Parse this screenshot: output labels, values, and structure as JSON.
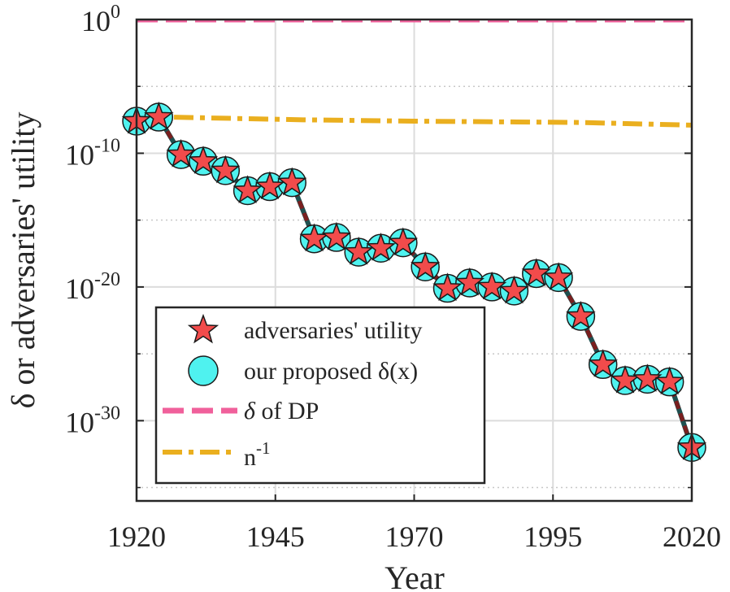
{
  "chart_data": {
    "type": "line",
    "title": "",
    "xlabel": "Year",
    "ylabel": "δ or adversaries' utility",
    "yscale": "log10",
    "xlim": [
      1920,
      2020
    ],
    "ylim_exponent": [
      -36,
      0
    ],
    "x_ticks": [
      1920,
      1945,
      1970,
      1995,
      2020
    ],
    "y_ticks": [
      {
        "base": "10",
        "exp": "0",
        "value_exponent": 0
      },
      {
        "base": "10",
        "exp": "-10",
        "value_exponent": -10
      },
      {
        "base": "10",
        "exp": "-20",
        "value_exponent": -20
      },
      {
        "base": "10",
        "exp": "-30",
        "value_exponent": -30
      }
    ],
    "grid": true,
    "legend_position": "bottom-left",
    "series": [
      {
        "name": "adversaries' utility",
        "marker": "star",
        "color": "#f24b4b",
        "x": [
          1920,
          1924,
          1928,
          1932,
          1936,
          1940,
          1944,
          1948,
          1952,
          1956,
          1960,
          1964,
          1968,
          1972,
          1976,
          1980,
          1984,
          1988,
          1992,
          1996,
          2000,
          2004,
          2008,
          2012,
          2016,
          2020
        ],
        "log10_y": [
          -7.6,
          -7.3,
          -10.1,
          -10.6,
          -11.3,
          -12.8,
          -12.5,
          -12.2,
          -16.4,
          -16.3,
          -17.4,
          -17.1,
          -16.7,
          -18.5,
          -20.1,
          -19.7,
          -20.0,
          -20.3,
          -19.0,
          -19.3,
          -22.2,
          -25.8,
          -27.0,
          -26.9,
          -27.1,
          -32.0
        ]
      },
      {
        "name": "our proposed δ(x)",
        "marker": "circle",
        "color": "#4ff2ef",
        "line_color": "#7a1f1f",
        "x": [
          1920,
          1924,
          1928,
          1932,
          1936,
          1940,
          1944,
          1948,
          1952,
          1956,
          1960,
          1964,
          1968,
          1972,
          1976,
          1980,
          1984,
          1988,
          1992,
          1996,
          2000,
          2004,
          2008,
          2012,
          2016,
          2020
        ],
        "log10_y": [
          -7.6,
          -7.3,
          -10.1,
          -10.6,
          -11.3,
          -12.8,
          -12.5,
          -12.2,
          -16.4,
          -16.3,
          -17.4,
          -17.1,
          -16.7,
          -18.5,
          -20.1,
          -19.7,
          -20.0,
          -20.3,
          -19.0,
          -19.3,
          -22.2,
          -25.8,
          -27.0,
          -26.9,
          -27.1,
          -32.0
        ]
      },
      {
        "name_symbol": "δ",
        "name_rest": " of DP",
        "color": "#f0609b",
        "style": "dashed",
        "x": [
          1920,
          2020
        ],
        "log10_y": [
          0,
          0
        ]
      },
      {
        "name_base": "n",
        "name_exp": "-1",
        "color": "#eaaf1f",
        "style": "dash-dot",
        "x": [
          1920,
          1926,
          1950,
          1970,
          2000,
          2020
        ],
        "log10_y": [
          -7.3,
          -7.3,
          -7.5,
          -7.6,
          -7.7,
          -7.9
        ]
      }
    ]
  },
  "legend": {
    "items": [
      "adversaries' utility",
      "our proposed δ(x)"
    ]
  }
}
